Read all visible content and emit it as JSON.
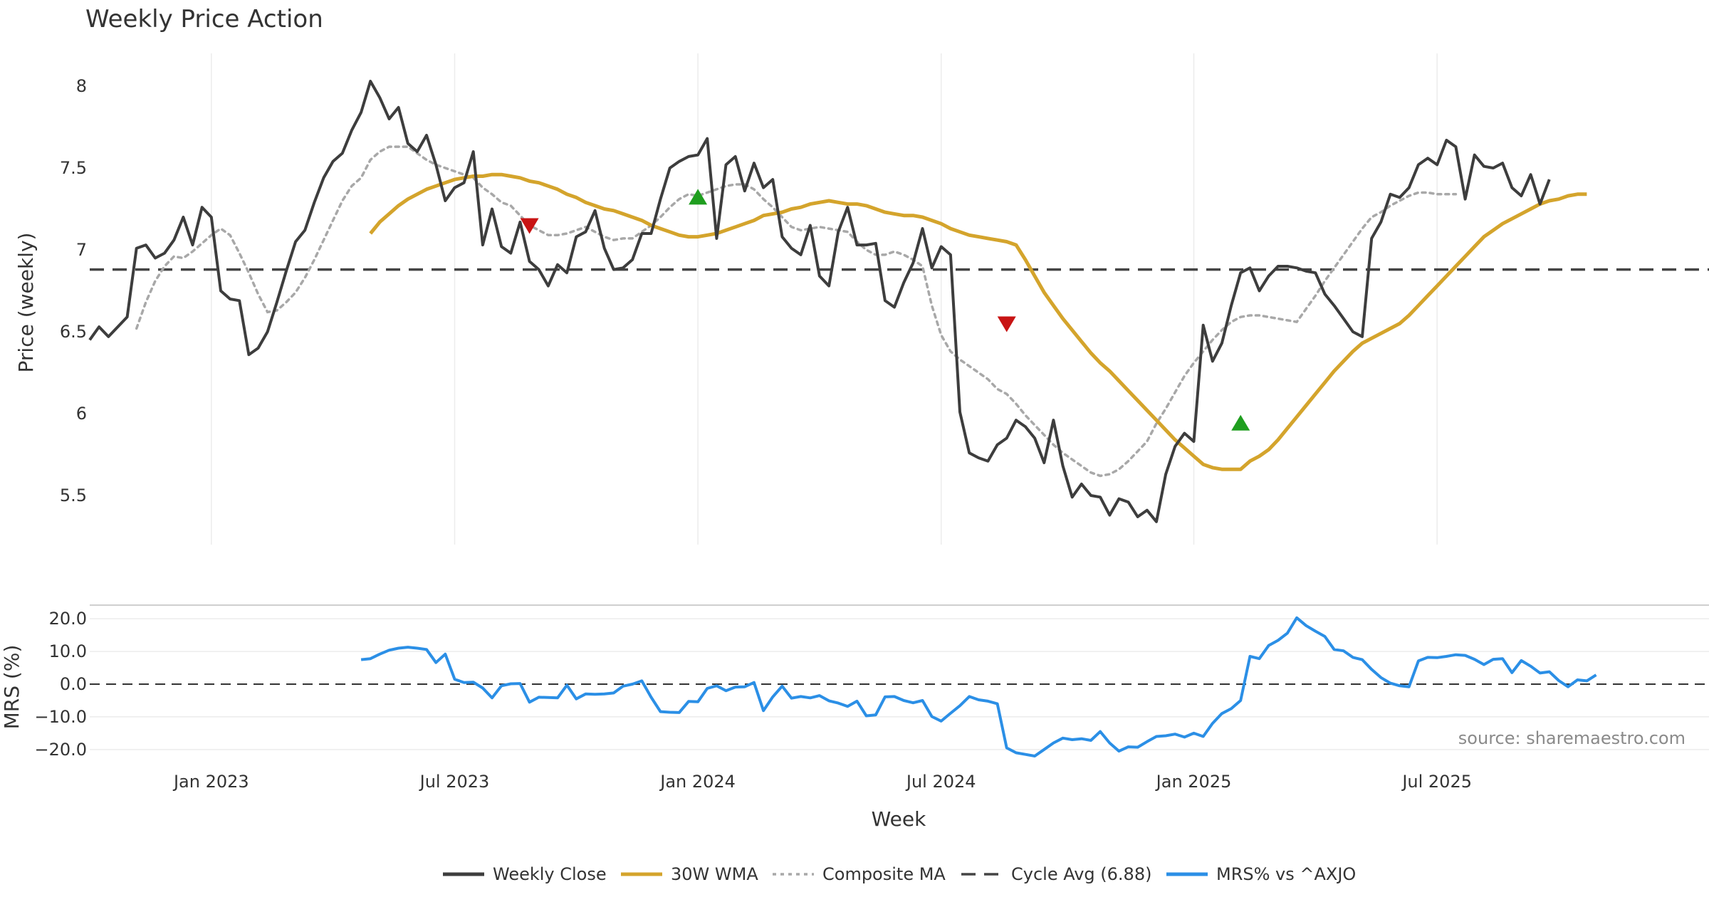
{
  "chart_data": {
    "type": "line",
    "title": "Weekly Price Action",
    "source_label": "source: sharemaestro.com",
    "x_axis": {
      "label": "Week",
      "range": [
        "2022-10-03",
        "2025-10-06"
      ],
      "ticks": [
        {
          "label": "Jan 2023",
          "date": "2023-01-02"
        },
        {
          "label": "Jul 2023",
          "date": "2023-07-03"
        },
        {
          "label": "Jan 2024",
          "date": "2024-01-01"
        },
        {
          "label": "Jul 2024",
          "date": "2024-07-01"
        },
        {
          "label": "Jan 2025",
          "date": "2025-01-06"
        },
        {
          "label": "Jul 2025",
          "date": "2025-07-07"
        }
      ]
    },
    "price_panel": {
      "ylabel": "Price (weekly)",
      "ylim": [
        5.2,
        8.2
      ],
      "yticks": [
        {
          "label": "5.5",
          "value": 5.5
        },
        {
          "label": "6",
          "value": 6.0
        },
        {
          "label": "6.5",
          "value": 6.5
        },
        {
          "label": "7",
          "value": 7.0
        },
        {
          "label": "7.5",
          "value": 7.5
        },
        {
          "label": "8",
          "value": 8.0
        }
      ],
      "cycle_avg": 6.88,
      "weekly_close": [
        6.45,
        6.53,
        6.47,
        6.53,
        6.59,
        7.01,
        7.03,
        6.95,
        6.98,
        7.06,
        7.2,
        7.03,
        7.26,
        7.2,
        6.75,
        6.7,
        6.69,
        6.36,
        6.4,
        6.5,
        6.68,
        6.87,
        7.05,
        7.12,
        7.29,
        7.44,
        7.54,
        7.59,
        7.73,
        7.84,
        8.03,
        7.93,
        7.8,
        7.87,
        7.65,
        7.6,
        7.7,
        7.52,
        7.3,
        7.38,
        7.41,
        7.6,
        7.03,
        7.25,
        7.02,
        6.98,
        7.17,
        6.93,
        6.88,
        6.78,
        6.91,
        6.86,
        7.08,
        7.11,
        7.24,
        7.01,
        6.88,
        6.89,
        6.94,
        7.1,
        7.1,
        7.31,
        7.5,
        7.54,
        7.57,
        7.58,
        7.68,
        7.07,
        7.52,
        7.57,
        7.36,
        7.53,
        7.38,
        7.43,
        7.08,
        7.01,
        6.97,
        7.15,
        6.84,
        6.78,
        7.11,
        7.26,
        7.03,
        7.03,
        7.04,
        6.69,
        6.65,
        6.8,
        6.92,
        7.13,
        6.89,
        7.02,
        6.97,
        6.01,
        5.76,
        5.73,
        5.71,
        5.81,
        5.85,
        5.96,
        5.92,
        5.85,
        5.7,
        5.96,
        5.68,
        5.49,
        5.57,
        5.5,
        5.49,
        5.38,
        5.48,
        5.46,
        5.37,
        5.41,
        5.34,
        5.63,
        5.8,
        5.88,
        5.83,
        6.54,
        6.32,
        6.43,
        6.66,
        6.86,
        6.89,
        6.75,
        6.84,
        6.9,
        6.9,
        6.89,
        6.87,
        6.86,
        6.73,
        6.66,
        6.58,
        6.5,
        6.47,
        7.07,
        7.17,
        7.34,
        7.32,
        7.38,
        7.52,
        7.56,
        7.52,
        7.67,
        7.63,
        7.31,
        7.58,
        7.51,
        7.5,
        7.53,
        7.38,
        7.33,
        7.46,
        7.28,
        7.43
      ],
      "wma_30w": {
        "name": "30W WMA",
        "start_index": 30,
        "values": [
          7.1,
          7.17,
          7.22,
          7.27,
          7.31,
          7.34,
          7.37,
          7.39,
          7.41,
          7.43,
          7.44,
          7.45,
          7.45,
          7.46,
          7.46,
          7.45,
          7.44,
          7.42,
          7.41,
          7.39,
          7.37,
          7.34,
          7.32,
          7.29,
          7.27,
          7.25,
          7.24,
          7.22,
          7.2,
          7.18,
          7.15,
          7.13,
          7.11,
          7.09,
          7.08,
          7.08,
          7.09,
          7.1,
          7.12,
          7.14,
          7.16,
          7.18,
          7.21,
          7.22,
          7.23,
          7.25,
          7.26,
          7.28,
          7.29,
          7.3,
          7.29,
          7.28,
          7.28,
          7.27,
          7.25,
          7.23,
          7.22,
          7.21,
          7.21,
          7.2,
          7.18,
          7.16,
          7.13,
          7.11,
          7.09,
          7.08,
          7.07,
          7.06,
          7.05,
          7.03,
          6.94,
          6.84,
          6.74,
          6.66,
          6.58,
          6.51,
          6.44,
          6.37,
          6.31,
          6.26,
          6.2,
          6.14,
          6.08,
          6.02,
          5.96,
          5.9,
          5.84,
          5.79,
          5.74,
          5.69,
          5.67,
          5.66,
          5.66,
          5.66,
          5.71,
          5.74,
          5.78,
          5.84,
          5.91,
          5.98,
          6.05,
          6.12,
          6.19,
          6.26,
          6.32,
          6.38,
          6.43,
          6.46,
          6.49,
          6.52,
          6.55,
          6.6,
          6.66,
          6.72,
          6.78,
          6.84,
          6.9,
          6.96,
          7.02,
          7.08,
          7.12,
          7.16,
          7.19,
          7.22,
          7.25,
          7.28,
          7.3,
          7.31,
          7.33,
          7.34,
          7.34
        ]
      },
      "composite_ma": {
        "name": "Composite MA",
        "start_index": 5,
        "values": [
          6.52,
          6.68,
          6.81,
          6.9,
          6.96,
          6.95,
          6.99,
          7.04,
          7.09,
          7.13,
          7.09,
          6.98,
          6.86,
          6.73,
          6.62,
          6.63,
          6.68,
          6.74,
          6.83,
          6.94,
          7.06,
          7.18,
          7.3,
          7.39,
          7.44,
          7.55,
          7.6,
          7.63,
          7.63,
          7.63,
          7.59,
          7.55,
          7.52,
          7.5,
          7.48,
          7.46,
          7.44,
          7.38,
          7.34,
          7.29,
          7.27,
          7.21,
          7.15,
          7.12,
          7.09,
          7.09,
          7.1,
          7.12,
          7.14,
          7.11,
          7.08,
          7.06,
          7.07,
          7.07,
          7.11,
          7.15,
          7.2,
          7.26,
          7.31,
          7.34,
          7.33,
          7.35,
          7.37,
          7.39,
          7.4,
          7.4,
          7.37,
          7.31,
          7.26,
          7.2,
          7.14,
          7.12,
          7.13,
          7.14,
          7.13,
          7.12,
          7.11,
          7.05,
          7.0,
          6.97,
          6.97,
          6.99,
          6.97,
          6.94,
          6.9,
          6.66,
          6.48,
          6.38,
          6.33,
          6.29,
          6.25,
          6.21,
          6.15,
          6.12,
          6.06,
          5.99,
          5.93,
          5.87,
          5.81,
          5.76,
          5.72,
          5.68,
          5.64,
          5.62,
          5.63,
          5.66,
          5.71,
          5.77,
          5.83,
          5.94,
          6.03,
          6.13,
          6.23,
          6.31,
          6.38,
          6.45,
          6.51,
          6.56,
          6.59,
          6.6,
          6.6,
          6.59,
          6.58,
          6.57,
          6.56,
          6.64,
          6.72,
          6.81,
          6.89,
          6.97,
          7.05,
          7.13,
          7.2,
          7.23,
          7.27,
          7.3,
          7.33,
          7.35,
          7.35,
          7.34,
          7.34,
          7.34
        ]
      },
      "signals": [
        {
          "type": "sell",
          "index": 47,
          "value": 7.15
        },
        {
          "type": "buy",
          "index": 65,
          "value": 7.32
        },
        {
          "type": "sell",
          "index": 98,
          "value": 6.55
        },
        {
          "type": "buy",
          "index": 123,
          "value": 5.94
        }
      ]
    },
    "mrs_panel": {
      "ylabel": "MRS (%)",
      "ylim": [
        -22,
        22
      ],
      "yticks": [
        {
          "label": "20.0",
          "value": 20
        },
        {
          "label": "10.0",
          "value": 10
        },
        {
          "label": "0.0",
          "value": 0
        },
        {
          "label": "−10.0",
          "value": -10
        },
        {
          "label": "−20.0",
          "value": -20
        }
      ],
      "series": {
        "name": "MRS% vs ^AXJO",
        "start_index": 29,
        "values": [
          7.5,
          7.8,
          9.2,
          10.4,
          11.0,
          11.3,
          11.0,
          10.6,
          6.6,
          9.2,
          1.5,
          0.5,
          0.6,
          -1.2,
          -4.2,
          -0.5,
          0.1,
          0.2,
          -5.5,
          -4.0,
          -4.1,
          -4.2,
          -0.3,
          -4.5,
          -3.0,
          -3.1,
          -3.0,
          -2.7,
          -0.6,
          0.0,
          1.0,
          -4.0,
          -8.4,
          -8.6,
          -8.7,
          -5.3,
          -5.4,
          -1.3,
          -0.5,
          -2.0,
          -0.9,
          -0.8,
          0.5,
          -8.1,
          -3.9,
          -0.6,
          -4.3,
          -3.8,
          -4.2,
          -3.5,
          -5.1,
          -5.8,
          -6.8,
          -5.2,
          -9.7,
          -9.4,
          -3.9,
          -3.8,
          -5.0,
          -5.7,
          -5.0,
          -9.9,
          -11.3,
          -8.9,
          -6.6,
          -3.8,
          -4.8,
          -5.2,
          -6.0,
          -19.5,
          -21.0,
          -21.5,
          -22.0,
          -20.0,
          -18.0,
          -16.5,
          -17.0,
          -16.7,
          -17.2,
          -14.5,
          -18.0,
          -20.5,
          -19.2,
          -19.3,
          -17.6,
          -16.0,
          -15.8,
          -15.3,
          -16.2,
          -15.0,
          -16.0,
          -12.0,
          -9.0,
          -7.5,
          -5.0,
          8.5,
          7.8,
          11.8,
          13.4,
          15.6,
          20.3,
          17.9,
          16.2,
          14.6,
          10.6,
          10.2,
          8.2,
          7.5,
          4.5,
          2.0,
          0.3,
          -0.5,
          -0.8,
          7.1,
          8.2,
          8.1,
          8.5,
          9.0,
          8.8,
          7.6,
          6.0,
          7.6,
          7.8,
          3.5,
          7.2,
          5.5,
          3.4,
          3.8,
          1.1,
          -0.8,
          1.3,
          1.0,
          2.8
        ]
      }
    },
    "legend": [
      {
        "label": "Weekly Close",
        "color": "#3d3d3d",
        "style": "solid"
      },
      {
        "label": "30W WMA",
        "color": "#d4a42c",
        "style": "solid"
      },
      {
        "label": "Composite MA",
        "color": "#a8a8a8",
        "style": "dotted"
      },
      {
        "label": "Cycle Avg (6.88)",
        "color": "#444444",
        "style": "dashed"
      },
      {
        "label": "MRS% vs ^AXJO",
        "color": "#2b8fe6",
        "style": "solid"
      }
    ],
    "colors": {
      "close": "#3d3d3d",
      "wma": "#d4a42c",
      "composite": "#a8a8a8",
      "cycle": "#444444",
      "mrs": "#2b8fe6",
      "buy": "#1f9e1f",
      "sell": "#c81414"
    }
  }
}
